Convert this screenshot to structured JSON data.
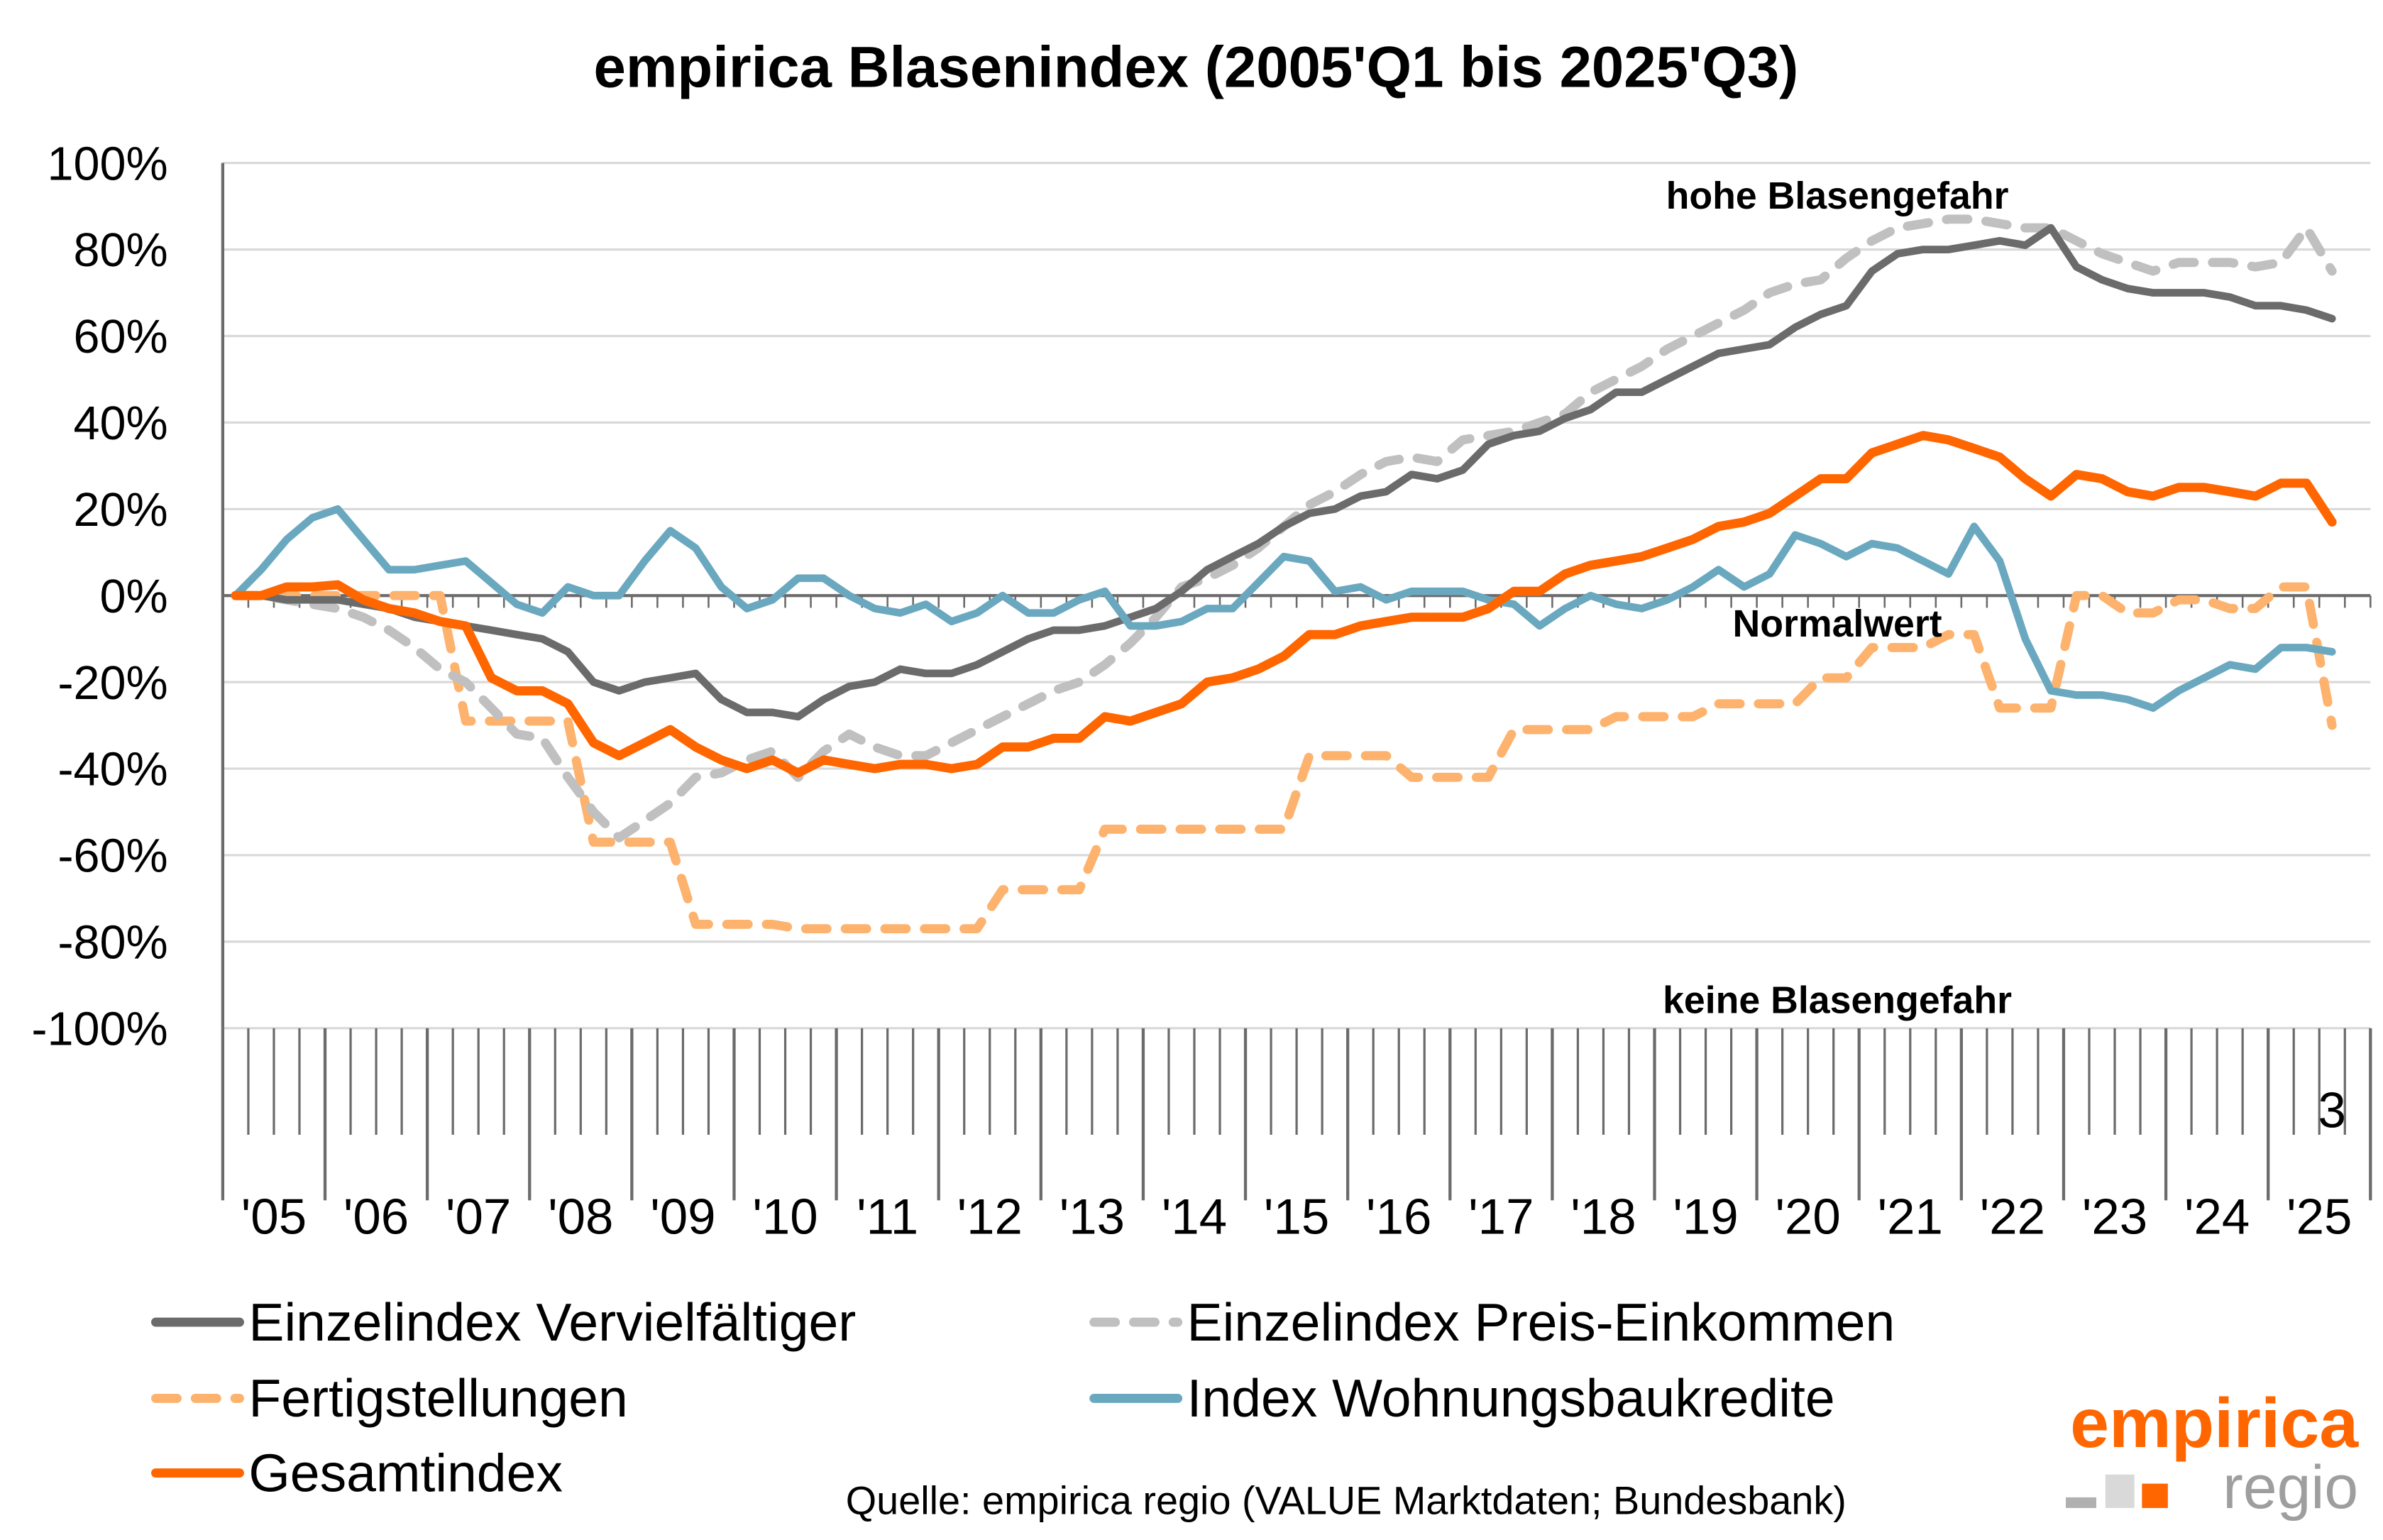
{
  "chart_data": {
    "type": "line",
    "title": "empirica Blasenindex (2005'Q1 bis 2025'Q3)",
    "xlabel": "",
    "ylabel": "",
    "ylim": [
      -100,
      100
    ],
    "yticks": [
      100,
      80,
      60,
      40,
      20,
      0,
      -20,
      -40,
      -60,
      -80,
      -100
    ],
    "ytick_labels": [
      "100%",
      "80%",
      "60%",
      "40%",
      "20%",
      "0%",
      "-20%",
      "-40%",
      "-60%",
      "-80%",
      "-100%"
    ],
    "x_start": "2005Q1",
    "x_end": "2025Q3",
    "year_labels": [
      "'05",
      "'06",
      "'07",
      "'08",
      "'09",
      "'10",
      "'11",
      "'12",
      "'13",
      "'14",
      "'15",
      "'16",
      "'17",
      "'18",
      "'19",
      "'20",
      "'21",
      "'22",
      "'23",
      "'24",
      "'25"
    ],
    "last_quarter_label": "3",
    "grid": true,
    "legend_position": "bottom",
    "annotations": {
      "high": "hohe Blasengefahr",
      "normal": "Normalwert",
      "none": "keine Blasengefahr"
    },
    "series": [
      {
        "name": "Einzelindex Vervielfältiger",
        "color": "#6b6b6b",
        "dash": false,
        "values": [
          0,
          0,
          -1,
          -1,
          -1,
          -2,
          -3,
          -5,
          -6,
          -7,
          -8,
          -9,
          -10,
          -13,
          -20,
          -22,
          -20,
          -19,
          -18,
          -24,
          -27,
          -27,
          -28,
          -24,
          -21,
          -20,
          -17,
          -18,
          -18,
          -16,
          -13,
          -10,
          -8,
          -8,
          -7,
          -5,
          -3,
          1,
          6,
          9,
          12,
          16,
          19,
          20,
          23,
          24,
          28,
          27,
          29,
          35,
          37,
          38,
          41,
          43,
          47,
          47,
          50,
          53,
          56,
          57,
          58,
          62,
          65,
          67,
          75,
          79,
          80,
          80,
          81,
          82,
          81,
          85,
          76,
          73,
          71,
          70,
          70,
          70,
          69,
          67,
          67,
          66,
          64
        ]
      },
      {
        "name": "Einzelindex Preis-Einkommen",
        "color": "#c0c0c0",
        "dash": true,
        "values": [
          0,
          0,
          -1,
          -2,
          -3,
          -5,
          -8,
          -12,
          -17,
          -20,
          -26,
          -32,
          -33,
          -42,
          -50,
          -56,
          -52,
          -48,
          -42,
          -41,
          -38,
          -36,
          -42,
          -36,
          -32,
          -35,
          -37,
          -37,
          -34,
          -31,
          -28,
          -25,
          -22,
          -20,
          -16,
          -11,
          -5,
          2,
          4,
          7,
          11,
          16,
          21,
          24,
          28,
          31,
          32,
          31,
          36,
          37,
          38,
          40,
          42,
          47,
          50,
          53,
          57,
          60,
          63,
          66,
          70,
          72,
          73,
          78,
          82,
          85,
          86,
          87,
          87,
          86,
          85,
          85,
          82,
          79,
          77,
          75,
          77,
          77,
          77,
          76,
          77,
          85,
          75
        ]
      },
      {
        "name": "Fertigstellungen",
        "color": "#fdb26e",
        "dash": true,
        "values": [
          0,
          0,
          0,
          0,
          0,
          0,
          0,
          0,
          0,
          -29,
          -29,
          -29,
          -29,
          -29,
          -57,
          -57,
          -57,
          -57,
          -76,
          -76,
          -76,
          -76,
          -77,
          -77,
          -77,
          -77,
          -77,
          -77,
          -77,
          -77,
          -68,
          -68,
          -68,
          -68,
          -54,
          -54,
          -54,
          -54,
          -54,
          -54,
          -54,
          -54,
          -37,
          -37,
          -37,
          -37,
          -42,
          -42,
          -42,
          -42,
          -31,
          -31,
          -31,
          -31,
          -28,
          -28,
          -28,
          -28,
          -25,
          -25,
          -25,
          -25,
          -19,
          -19,
          -12,
          -12,
          -12,
          -9,
          -9,
          -26,
          -26,
          -26,
          0,
          0,
          -4,
          -4,
          -1,
          -1,
          -3,
          -3,
          2,
          2,
          -30
        ]
      },
      {
        "name": "Index Wohnungsbaukredite",
        "color": "#6aa8bf",
        "dash": false,
        "values": [
          0,
          6,
          13,
          18,
          20,
          13,
          6,
          6,
          7,
          8,
          3,
          -2,
          -4,
          2,
          0,
          0,
          8,
          15,
          11,
          2,
          -3,
          -1,
          4,
          4,
          0,
          -3,
          -4,
          -2,
          -6,
          -4,
          0,
          -4,
          -4,
          -1,
          1,
          -7,
          -7,
          -6,
          -3,
          -3,
          3,
          9,
          8,
          1,
          2,
          -1,
          1,
          1,
          1,
          -1,
          -2,
          -7,
          -3,
          0,
          -2,
          -3,
          -1,
          2,
          6,
          2,
          5,
          14,
          12,
          9,
          12,
          11,
          8,
          5,
          16,
          8,
          -10,
          -22,
          -23,
          -23,
          -24,
          -26,
          -22,
          -19,
          -16,
          -17,
          -12,
          -12,
          -13
        ]
      },
      {
        "name": "Gesamtindex",
        "color": "#ff6600",
        "dash": false,
        "values": [
          0,
          0,
          2,
          2,
          2.5,
          -1,
          -3,
          -4,
          -6,
          -7,
          -19,
          -22,
          -22,
          -25,
          -34,
          -37,
          -34,
          -31,
          -35,
          -38,
          -40,
          -38,
          -41,
          -38,
          -39,
          -40,
          -39,
          -39,
          -40,
          -39,
          -35,
          -35,
          -33,
          -33,
          -28,
          -29,
          -27,
          -25,
          -20,
          -19,
          -17,
          -14,
          -9,
          -9,
          -7,
          -6,
          -5,
          -5,
          -5,
          -3,
          1,
          1,
          5,
          7,
          8,
          9,
          11,
          13,
          16,
          17,
          19,
          23,
          27,
          27,
          33,
          35,
          37,
          36,
          34,
          32,
          27,
          23,
          28,
          27,
          24,
          23,
          25,
          25,
          24,
          23,
          26,
          26,
          17
        ]
      }
    ],
    "legend_order": [
      0,
      1,
      2,
      3,
      4
    ]
  },
  "source": "Quelle: empirica regio (VALUE Marktdaten; Bundesbank)",
  "logo": {
    "top": "empirica",
    "bottom": "regio",
    "colors": {
      "orange": "#ff6600",
      "grey": "#9e9e9e",
      "light": "#d9d9d9",
      "mid": "#b0b0b0"
    }
  }
}
